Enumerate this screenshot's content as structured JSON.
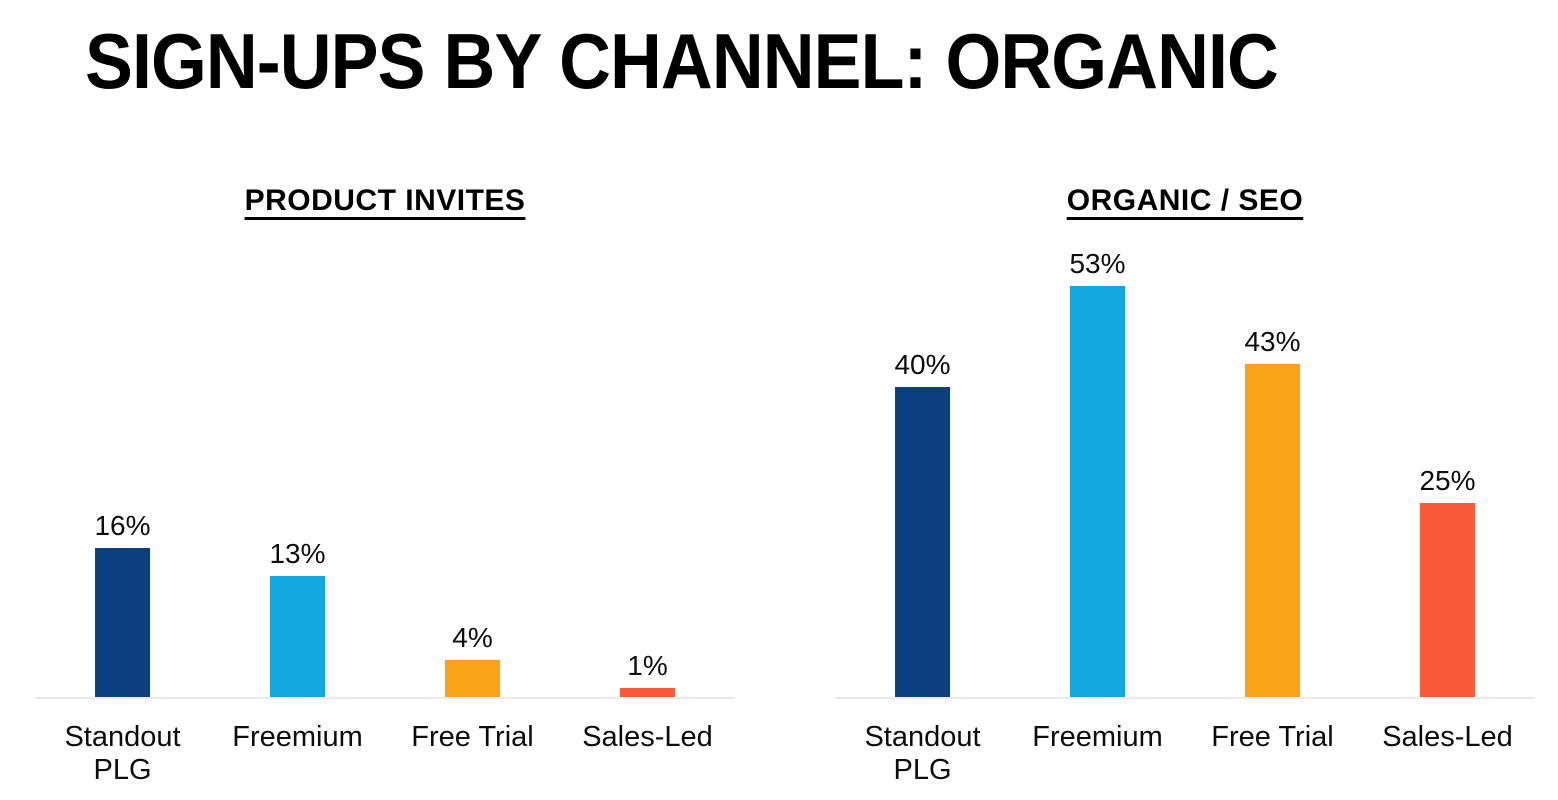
{
  "title": "SIGN-UPS BY CHANNEL: ORGANIC",
  "colors": {
    "navy": "#0B3F80",
    "cyan": "#12A8DF",
    "orange": "#FBA317",
    "red_orange": "#FA5A38",
    "axis_line": "#E9E9E9",
    "background": "#FFFFFF",
    "text": "#000000"
  },
  "chart_data": [
    {
      "type": "bar",
      "title": "PRODUCT INVITES",
      "categories": [
        "Standout PLG",
        "Freemium",
        "Free Trial",
        "Sales-Led"
      ],
      "values": [
        16,
        13,
        4,
        1
      ],
      "value_labels": [
        "16%",
        "13%",
        "4%",
        "1%"
      ],
      "bar_colors": [
        "#0B3F80",
        "#12A8DF",
        "#FBA317",
        "#FA5A38"
      ],
      "xlabel": "",
      "ylabel": "",
      "ylim": [
        0,
        50
      ],
      "grid": false,
      "legend": "none",
      "value_labels_position": "above-bars"
    },
    {
      "type": "bar",
      "title": "ORGANIC / SEO",
      "categories": [
        "Standout PLG",
        "Freemium",
        "Free Trial",
        "Sales-Led"
      ],
      "values": [
        40,
        53,
        43,
        25
      ],
      "value_labels": [
        "40%",
        "53%",
        "43%",
        "25%"
      ],
      "bar_colors": [
        "#0B3F80",
        "#12A8DF",
        "#FBA317",
        "#FA5A38"
      ],
      "xlabel": "",
      "ylabel": "",
      "ylim": [
        0,
        60
      ],
      "grid": false,
      "legend": "none",
      "value_labels_position": "above-bars"
    }
  ]
}
